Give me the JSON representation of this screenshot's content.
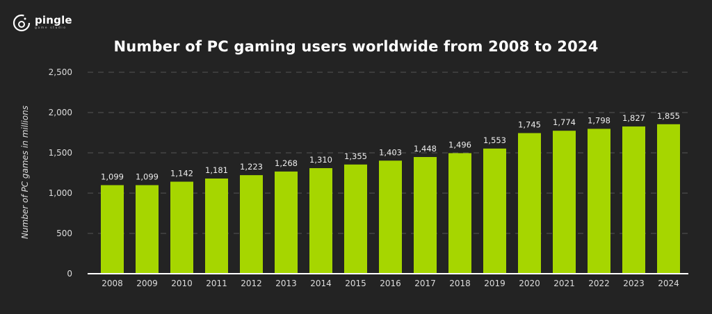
{
  "logo": {
    "name": "pingle",
    "subtitle": "game studio"
  },
  "chart_data": {
    "type": "bar",
    "title": "Number of PC gaming users worldwide from 2008 to 2024",
    "xlabel": "",
    "ylabel": "Number of PC games in millions",
    "categories": [
      "2008",
      "2009",
      "2010",
      "2011",
      "2012",
      "2013",
      "2014",
      "2015",
      "2016",
      "2017",
      "2018",
      "2019",
      "2020",
      "2021",
      "2022",
      "2023",
      "2024"
    ],
    "values": [
      1099,
      1099,
      1142,
      1181,
      1223,
      1268,
      1310,
      1355,
      1403,
      1448,
      1496,
      1553,
      1745,
      1774,
      1798,
      1827,
      1855
    ],
    "value_labels": [
      "1,099",
      "1,099",
      "1,142",
      "1,181",
      "1,223",
      "1,268",
      "1,310",
      "1,355",
      "1,403",
      "1,448",
      "1,496",
      "1,553",
      "1,745",
      "1,774",
      "1,798",
      "1,827",
      "1,855"
    ],
    "ylim": [
      0,
      2500
    ],
    "yticks": [
      0,
      500,
      1000,
      1500,
      2000,
      2500
    ],
    "ytick_labels": [
      "0",
      "500",
      "1,000",
      "1,500",
      "2,000",
      "2,500"
    ],
    "grid": true,
    "bar_color": "#a6d600",
    "background": "#232323"
  }
}
